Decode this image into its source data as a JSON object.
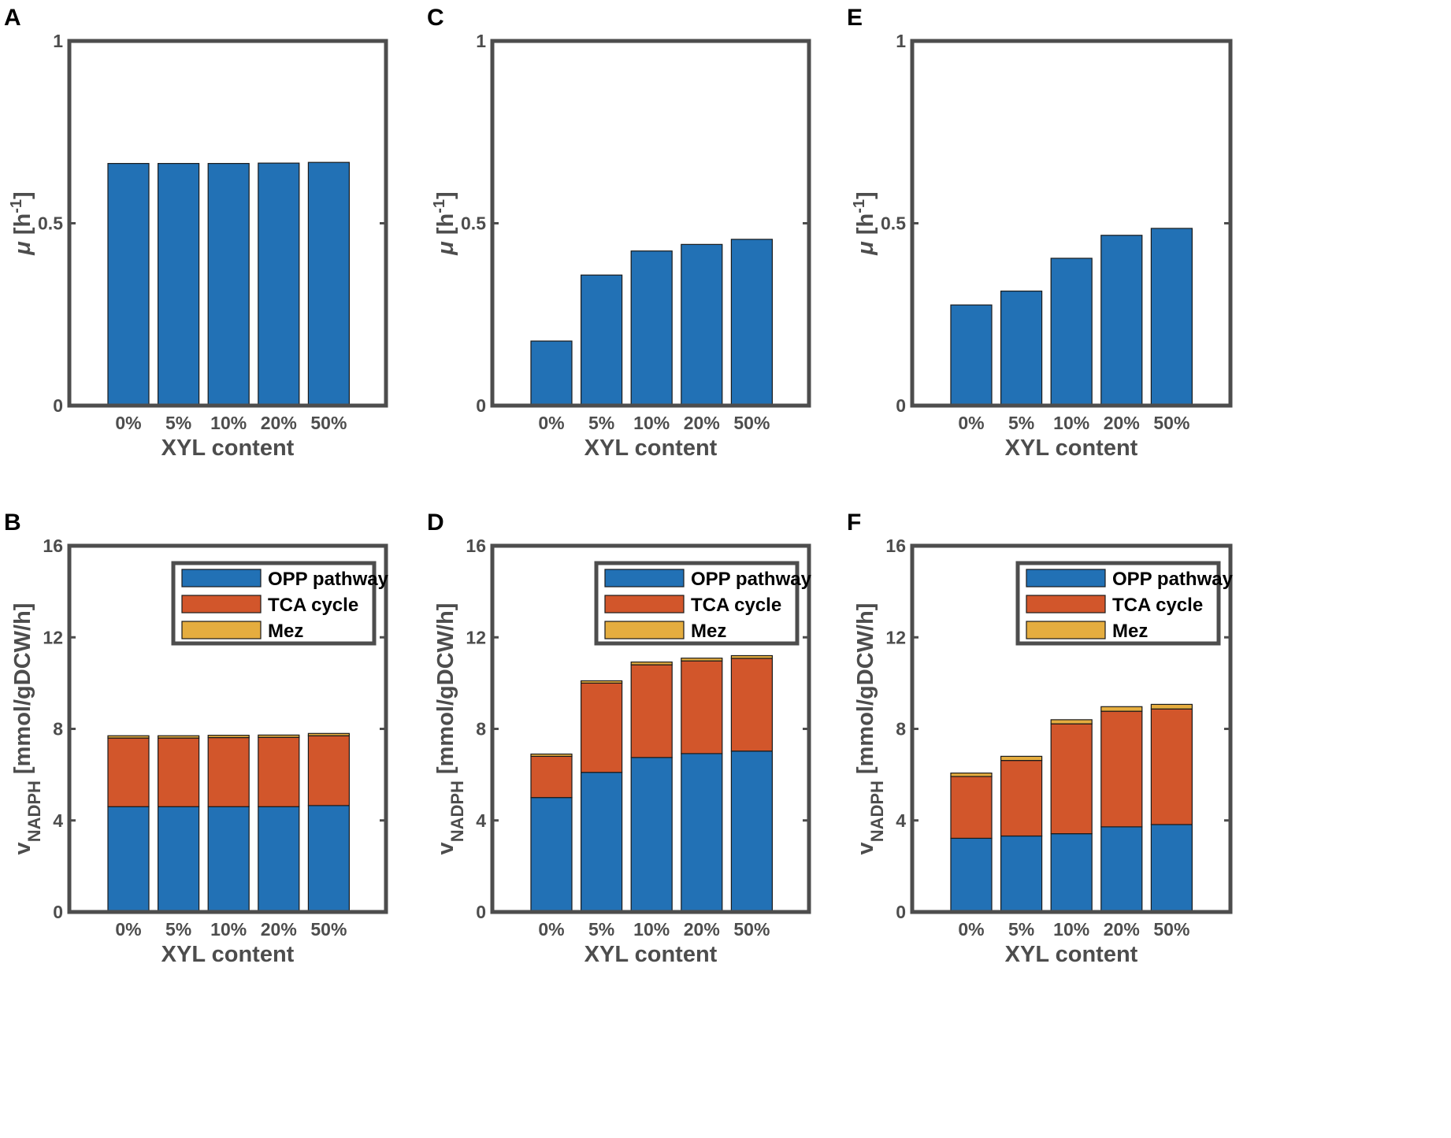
{
  "figure": {
    "panel_labels": [
      "A",
      "B",
      "C",
      "D",
      "E",
      "F"
    ],
    "colors": {
      "frame": "#4d4d4d",
      "text": "#4d4d4d",
      "label": "#000000",
      "series": [
        "#2271b5",
        "#d2562b",
        "#e5ad3f"
      ]
    }
  },
  "chart_data": [
    {
      "id": "A",
      "type": "bar",
      "categories": [
        "0%",
        "5%",
        "10%",
        "20%",
        "50%"
      ],
      "values": [
        0.664,
        0.664,
        0.664,
        0.665,
        0.667
      ],
      "xlabel": "XYL content",
      "ylabel": {
        "symbol": "μ",
        "text": " [h",
        "sup": "-1",
        "close": "]"
      },
      "ylim": [
        0,
        1
      ],
      "yticks": [
        "0",
        "0.5",
        "1"
      ]
    },
    {
      "id": "C",
      "type": "bar",
      "categories": [
        "0%",
        "5%",
        "10%",
        "20%",
        "50%"
      ],
      "values": [
        0.177,
        0.358,
        0.424,
        0.442,
        0.456
      ],
      "xlabel": "XYL content",
      "ylabel": {
        "symbol": "μ",
        "text": " [h",
        "sup": "-1",
        "close": "]"
      },
      "ylim": [
        0,
        1
      ],
      "yticks": [
        "0",
        "0.5",
        "1"
      ]
    },
    {
      "id": "E",
      "type": "bar",
      "categories": [
        "0%",
        "5%",
        "10%",
        "20%",
        "50%"
      ],
      "values": [
        0.276,
        0.314,
        0.404,
        0.467,
        0.486
      ],
      "xlabel": "XYL content",
      "ylabel": {
        "symbol": "μ",
        "text": " [h",
        "sup": "-1",
        "close": "]"
      },
      "ylim": [
        0,
        1
      ],
      "yticks": [
        "0",
        "0.5",
        "1"
      ]
    },
    {
      "id": "B",
      "type": "bar",
      "stacked": true,
      "categories": [
        "0%",
        "5%",
        "10%",
        "20%",
        "50%"
      ],
      "series": [
        {
          "name": "OPP pathway",
          "values": [
            4.6,
            4.6,
            4.6,
            4.6,
            4.65
          ]
        },
        {
          "name": "TCA cycle",
          "values": [
            3.0,
            3.0,
            3.02,
            3.03,
            3.05
          ]
        },
        {
          "name": "Mez",
          "values": [
            0.1,
            0.1,
            0.1,
            0.1,
            0.1
          ]
        }
      ],
      "xlabel": "XYL content",
      "ylabel": {
        "main": "v",
        "sub": "NADPH",
        "rest": " [mmol/gDCW/h]"
      },
      "ylim": [
        0,
        16
      ],
      "yticks": [
        "0",
        "4",
        "8",
        "12",
        "16"
      ],
      "legend": "top-right"
    },
    {
      "id": "D",
      "type": "bar",
      "stacked": true,
      "categories": [
        "0%",
        "5%",
        "10%",
        "20%",
        "50%"
      ],
      "series": [
        {
          "name": "OPP pathway",
          "values": [
            5.0,
            6.1,
            6.75,
            6.92,
            7.03
          ]
        },
        {
          "name": "TCA cycle",
          "values": [
            1.8,
            3.9,
            4.05,
            4.05,
            4.05
          ]
        },
        {
          "name": "Mez",
          "values": [
            0.1,
            0.1,
            0.12,
            0.12,
            0.12
          ]
        }
      ],
      "xlabel": "XYL content",
      "ylabel": {
        "main": "v",
        "sub": "NADPH",
        "rest": " [mmol/gDCW/h]"
      },
      "ylim": [
        0,
        16
      ],
      "yticks": [
        "0",
        "4",
        "8",
        "12",
        "16"
      ],
      "legend": "top-right"
    },
    {
      "id": "F",
      "type": "bar",
      "stacked": true,
      "categories": [
        "0%",
        "5%",
        "10%",
        "20%",
        "50%"
      ],
      "series": [
        {
          "name": "OPP pathway",
          "values": [
            3.22,
            3.32,
            3.42,
            3.72,
            3.82
          ]
        },
        {
          "name": "TCA cycle",
          "values": [
            2.7,
            3.3,
            4.8,
            5.05,
            5.05
          ]
        },
        {
          "name": "Mez",
          "values": [
            0.15,
            0.18,
            0.18,
            0.2,
            0.2
          ]
        }
      ],
      "xlabel": "XYL content",
      "ylabel": {
        "main": "v",
        "sub": "NADPH",
        "rest": " [mmol/gDCW/h]"
      },
      "ylim": [
        0,
        16
      ],
      "yticks": [
        "0",
        "4",
        "8",
        "12",
        "16"
      ],
      "legend": "top-right"
    }
  ]
}
